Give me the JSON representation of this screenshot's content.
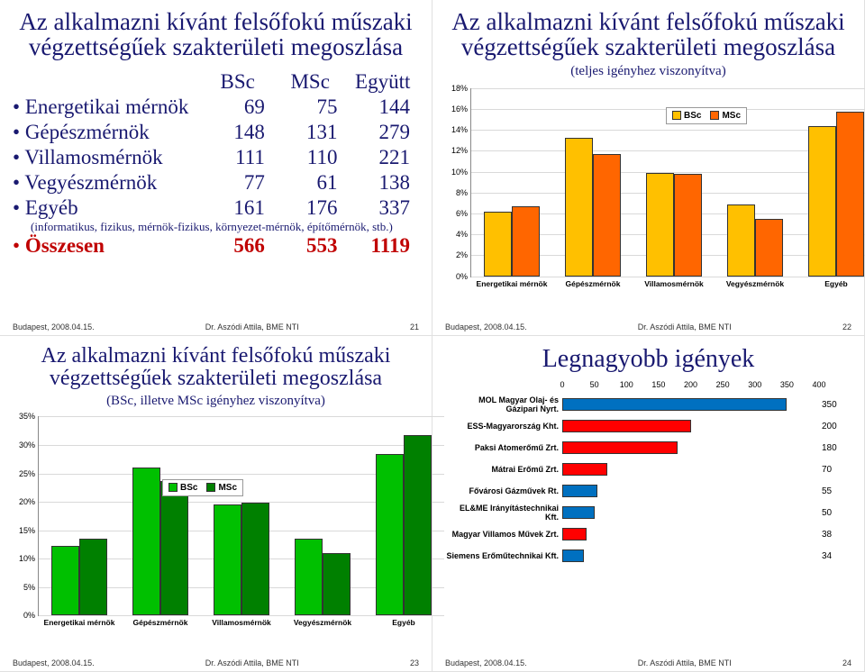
{
  "footer": {
    "left": "Budapest, 2008.04.15.",
    "center": "Dr. Aszódi Attila, BME NTI"
  },
  "colors": {
    "bsc_yellow": "#ffc000",
    "msc_orange": "#ff6600",
    "bsc_green": "#00c000",
    "msc_darkgreen": "#008000",
    "demand_blue": "#0070c0",
    "demand_red": "#ff0000",
    "title": "#191970"
  },
  "p21": {
    "title1": "Az alkalmazni kívánt felsőfokú műszaki",
    "title2": "végzettségűek szakterületi megoszlása",
    "cols": [
      "BSc",
      "MSc",
      "Együtt"
    ],
    "rows": [
      {
        "label": "Energetikai mérnök",
        "v": [
          69,
          75,
          144
        ]
      },
      {
        "label": "Gépészmérnök",
        "v": [
          148,
          131,
          279
        ]
      },
      {
        "label": "Villamosmérnök",
        "v": [
          111,
          110,
          221
        ]
      },
      {
        "label": "Vegyészmérnök",
        "v": [
          77,
          61,
          138
        ]
      },
      {
        "label": "Egyéb",
        "v": [
          161,
          176,
          337
        ],
        "note": "(informatikus, fizikus, mérnök-fizikus, környezet-mérnök, építőmérnök, stb.)"
      }
    ],
    "sum": {
      "label": "Összesen",
      "v": [
        566,
        553,
        1119
      ]
    },
    "page": "21"
  },
  "p22": {
    "title1": "Az alkalmazni kívánt felsőfokú műszaki",
    "title2": "végzettségűek szakterületi megoszlása",
    "sub": "(teljes igényhez viszonyítva)",
    "legend": [
      "BSc",
      "MSc"
    ],
    "ymax": 18,
    "ystep": 2,
    "categories": [
      "Energetikai mérnök",
      "Gépészmérnök",
      "Villamosmérnök",
      "Vegyészmérnök",
      "Egyéb"
    ],
    "bsc": [
      6.2,
      13.2,
      9.9,
      6.9,
      14.4
    ],
    "msc": [
      6.7,
      11.7,
      9.8,
      5.5,
      15.7
    ],
    "page": "22"
  },
  "p23": {
    "title1": "Az alkalmazni kívánt felsőfokú műszaki",
    "title2": "végzettségűek szakterületi megoszlása",
    "sub": "(BSc, illetve MSc igényhez viszonyítva)",
    "legend": [
      "BSc",
      "MSc"
    ],
    "ymax": 35,
    "ystep": 5,
    "categories": [
      "Energetikai mérnök",
      "Gépészmérnök",
      "Villamosmérnök",
      "Vegyészmérnök",
      "Egyéb"
    ],
    "bsc": [
      12.2,
      26.1,
      19.6,
      13.6,
      28.4
    ],
    "msc": [
      13.6,
      23.7,
      19.9,
      11.0,
      31.8
    ],
    "page": "23"
  },
  "p24": {
    "title": "Legnagyobb igények",
    "xmax": 400,
    "xstep": 50,
    "items": [
      {
        "label": "MOL Magyar Olaj- és Gázipari Nyrt.",
        "v": 350,
        "c": "#0070c0"
      },
      {
        "label": "ESS-Magyarország Kht.",
        "v": 200,
        "c": "#ff0000"
      },
      {
        "label": "Paksi Atomerőmű Zrt.",
        "v": 180,
        "c": "#ff0000"
      },
      {
        "label": "Mátrai Erőmű Zrt.",
        "v": 70,
        "c": "#ff0000"
      },
      {
        "label": "Fővárosi Gázművek Rt.",
        "v": 55,
        "c": "#0070c0"
      },
      {
        "label": "EL&ME Irányítástechnikai Kft.",
        "v": 50,
        "c": "#0070c0"
      },
      {
        "label": "Magyar Villamos Művek Zrt.",
        "v": 38,
        "c": "#ff0000"
      },
      {
        "label": "Siemens Erőműtechnikai Kft.",
        "v": 34,
        "c": "#0070c0"
      }
    ],
    "page": "24"
  }
}
